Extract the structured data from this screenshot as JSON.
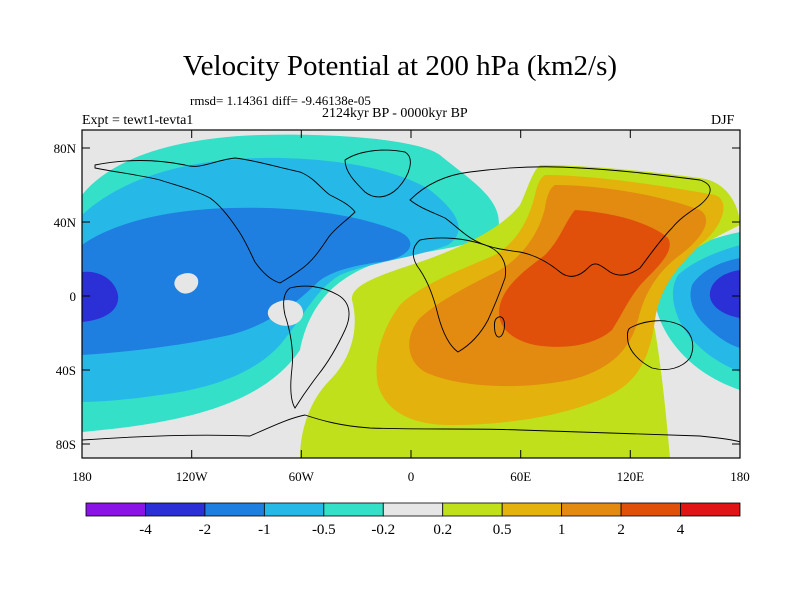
{
  "header": {
    "title": "Velocity Potential at 200 hPa (km2/s)",
    "stats": "rmsd= 1.14361 diff= -9.46138e-05",
    "period": "2124kyr BP - 0000kyr BP",
    "experiment": "Expt = tewt1-tevta1",
    "season": "DJF"
  },
  "axes": {
    "x_ticks": [
      "180",
      "120W",
      "60W",
      "0",
      "60E",
      "120E",
      "180"
    ],
    "y_ticks": [
      "80N",
      "40N",
      "0",
      "40S",
      "80S"
    ]
  },
  "colorbar": {
    "labels": [
      "-4",
      "-2",
      "-1",
      "-0.5",
      "-0.2",
      "0.2",
      "0.5",
      "1",
      "2",
      "4"
    ],
    "colors": [
      "#8a14e6",
      "#2b2fd6",
      "#1f7fe0",
      "#26b9e8",
      "#35e0c8",
      "#e6e6e6",
      "#bfe01a",
      "#e3b20c",
      "#e38a10",
      "#e0500a",
      "#e01414"
    ]
  },
  "map_colors": {
    "ocean_bg": "#e6e6e6",
    "level_m4": "#2b2fd6",
    "level_m2": "#1f7fe0",
    "level_m1": "#26b9e8",
    "level_m05": "#35e0c8",
    "level_p02": "#bfe01a",
    "level_p05": "#e3b20c",
    "level_p1": "#e38a10",
    "level_p2": "#e0500a"
  }
}
